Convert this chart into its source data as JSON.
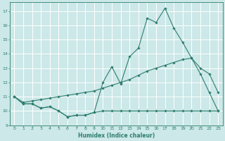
{
  "xlabel": "Humidex (Indice chaleur)",
  "bg_color": "#cce8e8",
  "grid_color": "#ffffff",
  "line_color": "#2e7d6e",
  "xlim": [
    -0.5,
    23.5
  ],
  "ylim": [
    9.0,
    17.6
  ],
  "yticks": [
    9,
    10,
    11,
    12,
    13,
    14,
    15,
    16,
    17
  ],
  "xticks": [
    0,
    1,
    2,
    3,
    4,
    5,
    6,
    7,
    8,
    9,
    10,
    11,
    12,
    13,
    14,
    15,
    16,
    17,
    18,
    19,
    20,
    21,
    22,
    23
  ],
  "line1_x": [
    0,
    1,
    2,
    3,
    4,
    5,
    6,
    7,
    8,
    9,
    10,
    11,
    12,
    13,
    14,
    15,
    16,
    17,
    18,
    19,
    20,
    21,
    22,
    23
  ],
  "line1_y": [
    11.0,
    10.5,
    10.5,
    10.2,
    10.3,
    10.0,
    9.6,
    9.7,
    9.7,
    9.9,
    10.0,
    10.0,
    10.0,
    10.0,
    10.0,
    10.0,
    10.0,
    10.0,
    10.0,
    10.0,
    10.0,
    10.0,
    10.0,
    10.0
  ],
  "line2_x": [
    0,
    1,
    2,
    3,
    4,
    5,
    6,
    7,
    8,
    9,
    10,
    11,
    12,
    13,
    14,
    15,
    16,
    17,
    18,
    19,
    20,
    21,
    22,
    23
  ],
  "line2_y": [
    11.0,
    10.6,
    10.7,
    10.8,
    10.9,
    11.0,
    11.1,
    11.2,
    11.3,
    11.4,
    11.6,
    11.8,
    12.0,
    12.2,
    12.5,
    12.8,
    13.0,
    13.2,
    13.4,
    13.6,
    13.7,
    13.0,
    12.6,
    11.3
  ],
  "line3_x": [
    0,
    1,
    2,
    3,
    4,
    5,
    6,
    7,
    8,
    9,
    10,
    11,
    12,
    13,
    14,
    15,
    16,
    17,
    18,
    19,
    20,
    21,
    22,
    23
  ],
  "line3_y": [
    11.0,
    10.5,
    10.5,
    10.2,
    10.3,
    10.0,
    9.6,
    9.7,
    9.7,
    9.9,
    12.0,
    13.1,
    11.9,
    13.8,
    14.4,
    16.5,
    16.2,
    17.2,
    15.8,
    14.8,
    13.7,
    12.6,
    11.3,
    10.0
  ],
  "marker": "D",
  "markersize": 1.8,
  "linewidth": 0.8
}
